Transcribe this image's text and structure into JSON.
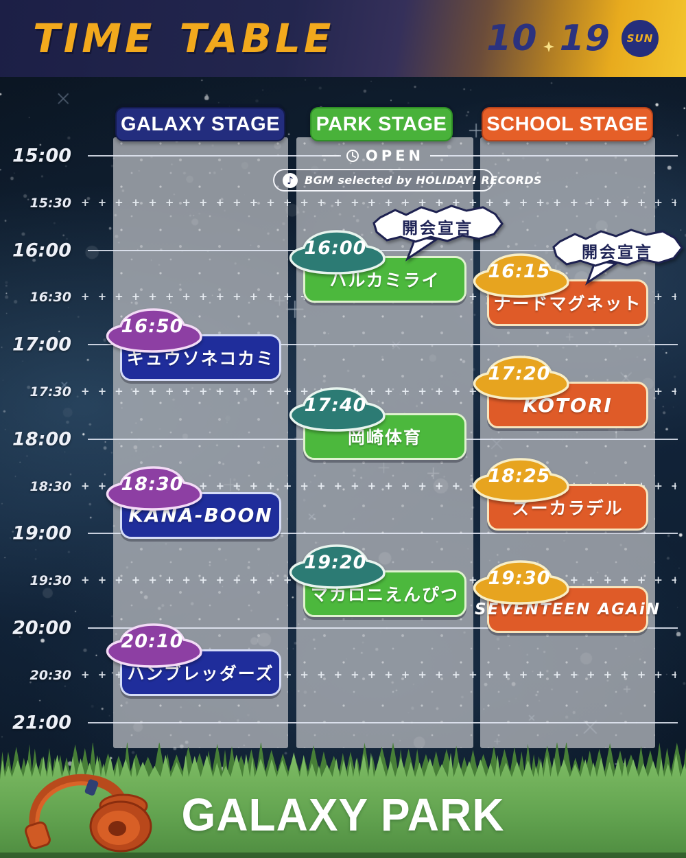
{
  "header": {
    "title": "TIME TABLE",
    "date": {
      "month": "10",
      "day": "19",
      "weekday": "SUN"
    }
  },
  "stages": [
    {
      "id": "galaxy",
      "label": "GALAXY STAGE",
      "pill_color": "#232d7e",
      "pill_border": "#141b4e",
      "box_color": "#1f2d9b",
      "box_border": "#d5dcf7",
      "badge_color": "#8d3fa3",
      "badge_border": "#f3dbf6"
    },
    {
      "id": "park",
      "label": "PARK STAGE",
      "pill_color": "#49b23a",
      "pill_border": "#2f8f26",
      "box_color": "#4cb83d",
      "box_border": "#dff2cf",
      "badge_color": "#2c7b74",
      "badge_border": "#e8f4ee"
    },
    {
      "id": "school",
      "label": "SCHOOL STAGE",
      "pill_color": "#e55f28",
      "pill_border": "#b8431a",
      "box_color": "#df5b28",
      "box_border": "#f7e4bd",
      "badge_color": "#e7a41f",
      "badge_border": "#f8eec6"
    }
  ],
  "timeline": {
    "times": [
      {
        "label": "15:00",
        "type": "hour"
      },
      {
        "label": "15:30",
        "type": "half"
      },
      {
        "label": "16:00",
        "type": "hour"
      },
      {
        "label": "16:30",
        "type": "half"
      },
      {
        "label": "17:00",
        "type": "hour"
      },
      {
        "label": "17:30",
        "type": "half"
      },
      {
        "label": "18:00",
        "type": "hour"
      },
      {
        "label": "18:30",
        "type": "half"
      },
      {
        "label": "19:00",
        "type": "hour"
      },
      {
        "label": "19:30",
        "type": "half"
      },
      {
        "label": "20:00",
        "type": "hour"
      },
      {
        "label": "20:30",
        "type": "half"
      },
      {
        "label": "21:00",
        "type": "hour"
      }
    ]
  },
  "park_open": {
    "open_label": "OPEN",
    "bgm_label": "BGM  selected by HOLIDAY! RECORDS"
  },
  "announcements": [
    {
      "stage": "park",
      "label": "開会宣言"
    },
    {
      "stage": "school",
      "label": "開会宣言"
    }
  ],
  "events": [
    {
      "stage": "park",
      "time": "16:00",
      "artist": "ハルカミライ"
    },
    {
      "stage": "school",
      "time": "16:15",
      "artist": "ナードマグネット"
    },
    {
      "stage": "galaxy",
      "time": "16:50",
      "artist": "キュウソネコカミ"
    },
    {
      "stage": "school",
      "time": "17:20",
      "artist": "KOTORI"
    },
    {
      "stage": "park",
      "time": "17:40",
      "artist": "岡崎体育"
    },
    {
      "stage": "school",
      "time": "18:25",
      "artist": "ズーカラデル"
    },
    {
      "stage": "galaxy",
      "time": "18:30",
      "artist": "KANA-BOON"
    },
    {
      "stage": "park",
      "time": "19:20",
      "artist": "マカロニえんぴつ"
    },
    {
      "stage": "school",
      "time": "19:30",
      "artist": "SEVENTEEN AGAiN"
    },
    {
      "stage": "galaxy",
      "time": "20:10",
      "artist": "ハンブレッダーズ"
    }
  ],
  "footer": {
    "title": "GALAXY PARK"
  }
}
